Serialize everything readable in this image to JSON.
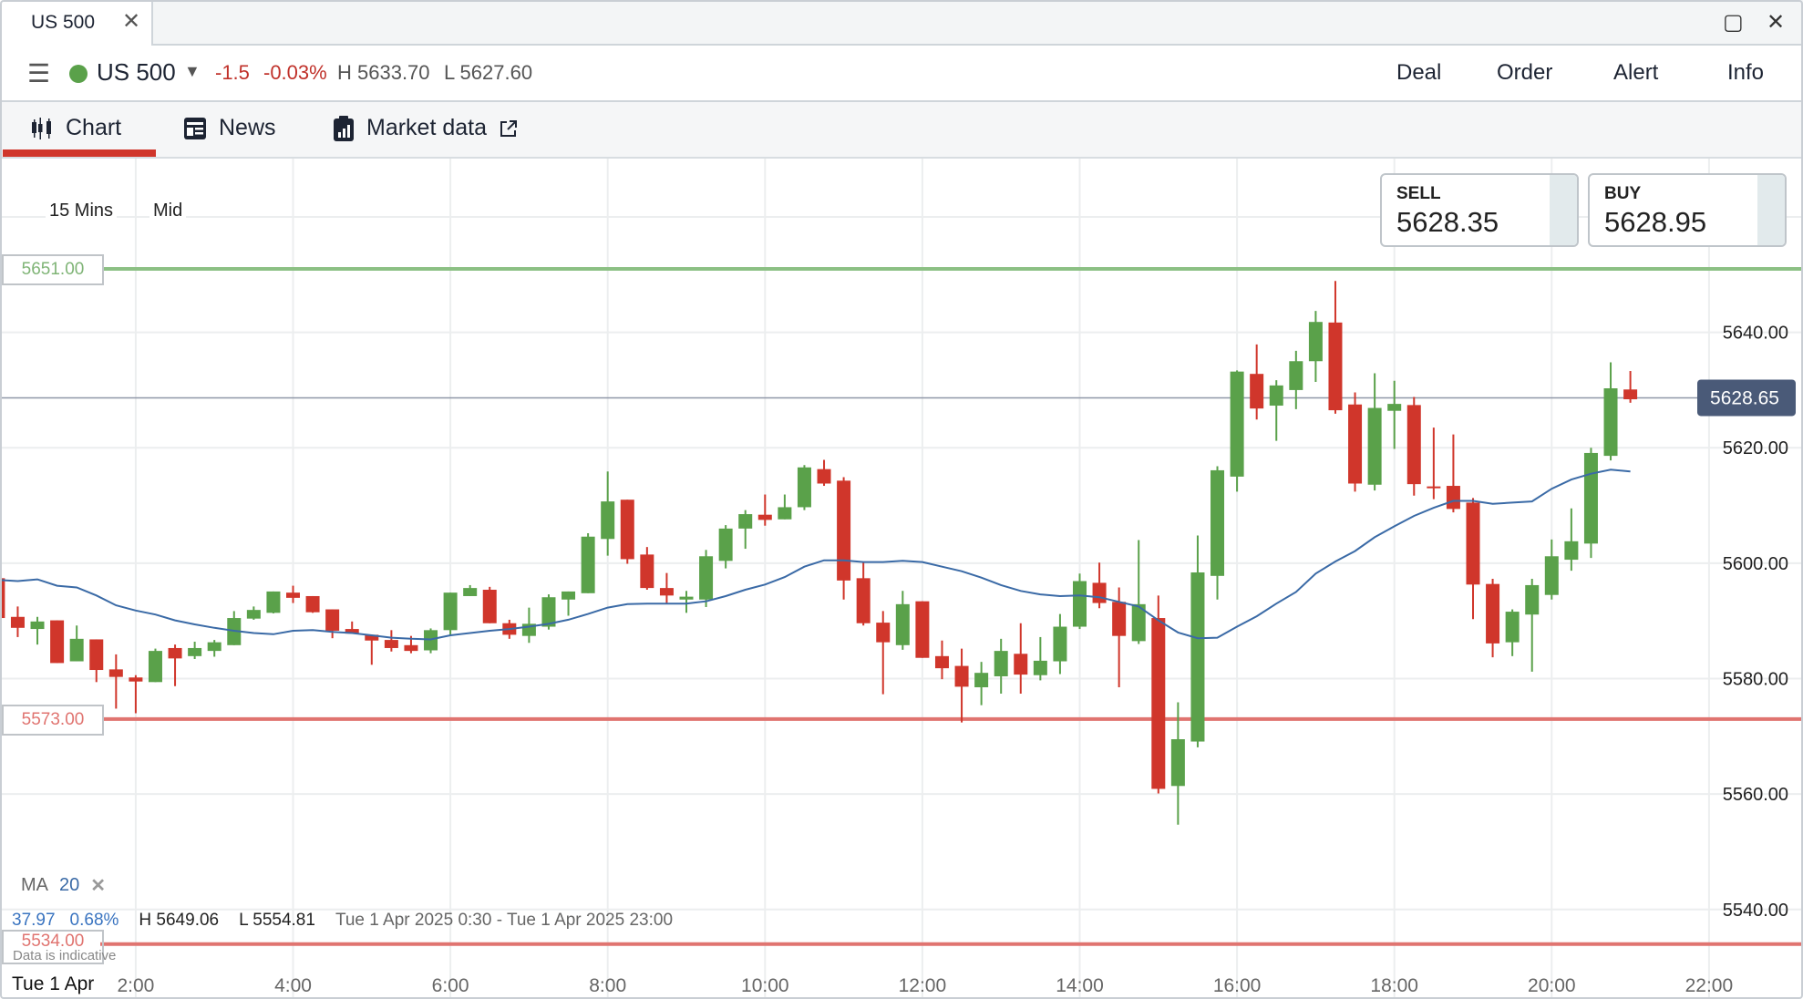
{
  "window": {
    "tab_title": "US 500",
    "close_tab_icon": "close-icon",
    "maximize_icon": "maximize-icon",
    "close_icon": "close-icon"
  },
  "header": {
    "menu_icon": "hamburger-icon",
    "status_color": "#5aa14a",
    "market_name": "US 500",
    "change": "-1.5",
    "change_pct": "-0.03%",
    "high": "H 5633.70",
    "low": "L 5627.60",
    "actions": [
      {
        "label": "Deal"
      },
      {
        "label": "Order"
      },
      {
        "label": "Alert"
      },
      {
        "label": "Info"
      }
    ]
  },
  "nav": {
    "tabs": [
      {
        "label": "Chart",
        "icon": "candlestick-icon",
        "active": true
      },
      {
        "label": "News",
        "icon": "newspaper-icon"
      },
      {
        "label": "Market data",
        "icon": "clipboard-chart-icon",
        "external_icon": "external-link-icon"
      }
    ]
  },
  "chart_controls": {
    "interval": "15 Mins",
    "price_type": "Mid"
  },
  "quote": {
    "sell_label": "SELL",
    "sell_price": "5628.35",
    "buy_label": "BUY",
    "buy_price": "5628.95"
  },
  "indicator": {
    "name": "MA",
    "period": "20",
    "remove_icon": "close-icon"
  },
  "stats": {
    "change": "37.97",
    "change_pct": "0.68%",
    "high": "H 5649.06",
    "low": "L 5554.81",
    "range": "Tue 1 Apr 2025 0:30 - Tue 1 Apr 2025 23:00"
  },
  "disclaimer": "Data is indicative",
  "date_label": "Tue 1 Apr",
  "colors": {
    "up": "#5aa14a",
    "down": "#d0362b",
    "ma": "#3a6aa6",
    "upper_level": "#8cc084",
    "lower_level": "#e07470",
    "current_price_badge": "#4a5a78",
    "accent": "#d0362b"
  },
  "chart_data": {
    "type": "candlestick",
    "interval": "15 Mins",
    "ylim": [
      5528,
      5664
    ],
    "xlim": [
      "0:15",
      "23:00"
    ],
    "y_ticks": [
      "5640.00",
      "5620.00",
      "5600.00",
      "5580.00",
      "5560.00",
      "5540.00"
    ],
    "x_ticks": [
      "2:00",
      "4:00",
      "6:00",
      "8:00",
      "10:00",
      "12:00",
      "14:00",
      "16:00",
      "18:00",
      "20:00",
      "22:00"
    ],
    "grid": true,
    "current_price": "5628.65",
    "levels": [
      {
        "label": "5651.00",
        "value": 5651.0,
        "kind": "upper"
      },
      {
        "label": "5573.00",
        "value": 5573.0,
        "kind": "lower"
      },
      {
        "label": "5534.00",
        "value": 5534.0,
        "kind": "lower"
      }
    ],
    "candle_fields": [
      "time",
      "open",
      "high",
      "low",
      "close"
    ],
    "candles": [
      [
        "0:15",
        5597.4,
        5597.4,
        5590.5,
        5590.5
      ],
      [
        "0:30",
        5590.7,
        5592.5,
        5587.2,
        5588.8
      ],
      [
        "0:45",
        5588.6,
        5590.7,
        5585.9,
        5589.9
      ],
      [
        "1:00",
        5590.1,
        5590.1,
        5582.7,
        5582.7
      ],
      [
        "1:15",
        5583.0,
        5589.2,
        5583.0,
        5586.9
      ],
      [
        "1:30",
        5586.8,
        5586.8,
        5579.4,
        5581.5
      ],
      [
        "1:45",
        5581.6,
        5584.2,
        5574.8,
        5580.3
      ],
      [
        "2:00",
        5580.2,
        5580.6,
        5574.0,
        5579.5
      ],
      [
        "2:15",
        5579.4,
        5585.2,
        5579.4,
        5584.8
      ],
      [
        "2:30",
        5585.3,
        5585.9,
        5578.7,
        5583.5
      ],
      [
        "2:45",
        5583.9,
        5586.4,
        5583.4,
        5585.3
      ],
      [
        "3:00",
        5584.8,
        5586.7,
        5583.8,
        5586.3
      ],
      [
        "3:15",
        5585.8,
        5591.7,
        5585.8,
        5590.5
      ],
      [
        "3:30",
        5590.4,
        5592.5,
        5590.2,
        5591.9
      ],
      [
        "3:45",
        5591.4,
        5595.1,
        5591.3,
        5595.1
      ],
      [
        "4:00",
        5594.9,
        5596.1,
        5593.1,
        5594.0
      ],
      [
        "4:15",
        5594.3,
        5594.3,
        5591.4,
        5591.5
      ],
      [
        "4:30",
        5592.0,
        5592.0,
        5587.0,
        5588.3
      ],
      [
        "4:45",
        5588.6,
        5589.9,
        5587.8,
        5587.8
      ],
      [
        "5:00",
        5587.6,
        5587.6,
        5582.4,
        5586.6
      ],
      [
        "5:15",
        5586.7,
        5588.4,
        5584.7,
        5585.3
      ],
      [
        "5:30",
        5585.8,
        5587.4,
        5584.4,
        5584.8
      ],
      [
        "5:45",
        5584.9,
        5588.7,
        5584.4,
        5588.4
      ],
      [
        "6:00",
        5588.4,
        5594.9,
        5587.5,
        5594.9
      ],
      [
        "6:15",
        5594.3,
        5596.2,
        5594.3,
        5595.7
      ],
      [
        "6:30",
        5595.4,
        5595.9,
        5589.6,
        5589.6
      ],
      [
        "6:45",
        5589.6,
        5590.2,
        5586.9,
        5587.6
      ],
      [
        "7:00",
        5587.4,
        5592.3,
        5586.2,
        5589.5
      ],
      [
        "7:15",
        5589.0,
        5594.6,
        5588.5,
        5594.1
      ],
      [
        "7:30",
        5593.7,
        5595.1,
        5590.9,
        5595.1
      ],
      [
        "7:45",
        5594.8,
        5605.2,
        5594.8,
        5604.6
      ],
      [
        "8:00",
        5604.2,
        5615.9,
        5601.3,
        5610.7
      ],
      [
        "8:15",
        5611.0,
        5611.0,
        5599.9,
        5600.7
      ],
      [
        "8:30",
        5601.5,
        5602.8,
        5595.4,
        5595.7
      ],
      [
        "8:45",
        5595.7,
        5598.3,
        5592.9,
        5594.4
      ],
      [
        "9:00",
        5593.7,
        5595.2,
        5591.4,
        5594.2
      ],
      [
        "9:15",
        5593.7,
        5602.3,
        5592.4,
        5601.2
      ],
      [
        "9:30",
        5600.4,
        5606.6,
        5599.1,
        5606.0
      ],
      [
        "9:45",
        5606.0,
        5609.2,
        5602.5,
        5608.5
      ],
      [
        "10:00",
        5608.4,
        5611.9,
        5606.5,
        5607.5
      ],
      [
        "10:15",
        5607.6,
        5611.9,
        5607.6,
        5609.7
      ],
      [
        "10:30",
        5609.7,
        5617.0,
        5609.2,
        5616.6
      ],
      [
        "10:45",
        5616.3,
        5617.9,
        5613.4,
        5613.8
      ],
      [
        "11:00",
        5614.3,
        5614.9,
        5593.7,
        5597.0
      ],
      [
        "11:15",
        5597.4,
        5600.2,
        5589.2,
        5589.6
      ],
      [
        "11:30",
        5589.7,
        5591.7,
        5577.3,
        5586.3
      ],
      [
        "11:45",
        5585.8,
        5595.2,
        5585.0,
        5592.9
      ],
      [
        "12:00",
        5593.4,
        5593.4,
        5583.6,
        5583.6
      ],
      [
        "12:15",
        5583.9,
        5586.6,
        5579.9,
        5581.8
      ],
      [
        "12:30",
        5582.2,
        5585.2,
        5572.4,
        5578.6
      ],
      [
        "12:45",
        5578.5,
        5582.9,
        5575.4,
        5581.0
      ],
      [
        "13:00",
        5580.4,
        5586.9,
        5577.4,
        5584.8
      ],
      [
        "13:15",
        5584.3,
        5589.6,
        5577.4,
        5580.7
      ],
      [
        "13:30",
        5580.6,
        5587.2,
        5579.7,
        5583.1
      ],
      [
        "13:45",
        5583.0,
        5591.2,
        5580.8,
        5589.0
      ],
      [
        "14:00",
        5589.0,
        5598.2,
        5588.6,
        5596.9
      ],
      [
        "14:15",
        5596.6,
        5600.1,
        5592.2,
        5593.1
      ],
      [
        "14:30",
        5593.3,
        5595.8,
        5578.5,
        5587.4
      ],
      [
        "14:45",
        5586.5,
        5604.0,
        5586.0,
        5592.9
      ],
      [
        "15:00",
        5590.5,
        5594.4,
        5560.1,
        5560.9
      ],
      [
        "15:15",
        5561.4,
        5575.9,
        5554.7,
        5569.5
      ],
      [
        "15:30",
        5569.1,
        5604.8,
        5568.1,
        5598.4
      ],
      [
        "15:45",
        5597.8,
        5616.8,
        5593.7,
        5616.1
      ],
      [
        "16:00",
        5615.0,
        5633.4,
        5612.4,
        5633.2
      ],
      [
        "16:15",
        5632.8,
        5637.9,
        5624.9,
        5626.8
      ],
      [
        "16:30",
        5627.3,
        5631.7,
        5621.2,
        5630.8
      ],
      [
        "16:45",
        5630.0,
        5636.8,
        5626.7,
        5635.0
      ],
      [
        "17:00",
        5635.0,
        5643.7,
        5631.4,
        5641.8
      ],
      [
        "17:15",
        5641.7,
        5648.9,
        5625.9,
        5626.5
      ],
      [
        "17:30",
        5627.5,
        5629.6,
        5612.4,
        5613.8
      ],
      [
        "17:45",
        5613.6,
        5632.9,
        5612.6,
        5626.9
      ],
      [
        "18:00",
        5626.4,
        5631.6,
        5619.8,
        5627.6
      ],
      [
        "18:15",
        5627.4,
        5628.8,
        5611.7,
        5613.7
      ],
      [
        "18:30",
        5613.3,
        5623.5,
        5611.1,
        5613.0
      ],
      [
        "18:45",
        5613.4,
        5622.3,
        5608.8,
        5609.4
      ],
      [
        "19:00",
        5610.5,
        5611.3,
        5590.3,
        5596.3
      ],
      [
        "19:15",
        5596.4,
        5597.3,
        5583.7,
        5586.1
      ],
      [
        "19:30",
        5586.3,
        5592.0,
        5583.9,
        5591.6
      ],
      [
        "19:45",
        5591.1,
        5597.3,
        5581.2,
        5596.2
      ],
      [
        "20:00",
        5594.5,
        5604.1,
        5593.7,
        5601.2
      ],
      [
        "20:15",
        5600.6,
        5609.5,
        5598.7,
        5603.8
      ],
      [
        "20:30",
        5603.4,
        5620.0,
        5600.9,
        5619.1
      ],
      [
        "20:45",
        5618.6,
        5634.8,
        5617.8,
        5630.3
      ],
      [
        "21:00",
        5630.1,
        5633.3,
        5627.8,
        5628.4
      ]
    ],
    "ma_20": [
      5597.1,
      5596.9,
      5597.2,
      5596.1,
      5595.8,
      5594.4,
      5592.7,
      5591.8,
      5591.1,
      5590.1,
      5589.4,
      5588.8,
      5588.3,
      5587.9,
      5587.7,
      5588.3,
      5588.4,
      5588.1,
      5587.9,
      5587.5,
      5587.1,
      5586.9,
      5586.8,
      5587.5,
      5587.9,
      5588.3,
      5588.6,
      5589.0,
      5589.5,
      5590.2,
      5591.2,
      5592.3,
      5592.9,
      5593.0,
      5593.0,
      5593.0,
      5593.4,
      5594.3,
      5595.4,
      5596.3,
      5597.6,
      5599.4,
      5600.5,
      5600.5,
      5600.2,
      5600.2,
      5600.4,
      5600.2,
      5599.4,
      5598.6,
      5597.5,
      5596.2,
      5595.2,
      5594.6,
      5594.3,
      5594.4,
      5594.1,
      5593.3,
      5592.5,
      5590.1,
      5588.0,
      5587.0,
      5587.1,
      5589.0,
      5590.8,
      5593.0,
      5595.0,
      5598.2,
      5600.3,
      5602.1,
      5604.5,
      5606.4,
      5608.2,
      5609.6,
      5610.8,
      5610.8,
      5610.3,
      5610.5,
      5610.7,
      5612.9,
      5614.5,
      5615.5,
      5616.2,
      5615.9
    ]
  }
}
